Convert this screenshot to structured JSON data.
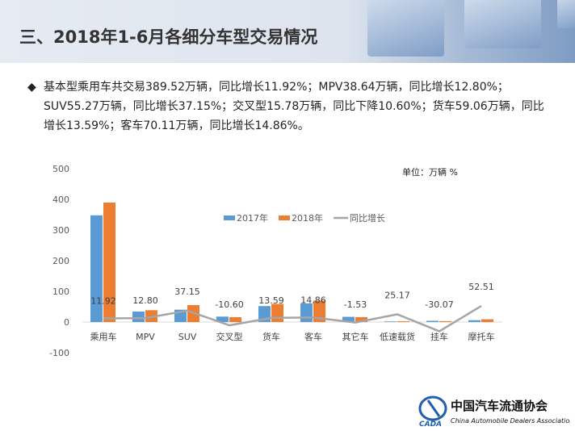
{
  "title": "三、2018年1-6月各细分车型交易情况",
  "bullet": "基本型乘用车共交易389.52万辆，同比增长11.92%；MPV38.64万辆，同比增长12.80%；SUV55.27万辆，同比增长37.15%；交叉型15.78万辆，同比下降10.60%；货车59.06万辆，同比增长13.59%；客车70.11万辆，同比增长14.86%。",
  "logo": {
    "cn": "中国汽车流通协会",
    "en": "China Automobile Dealers Association",
    "abbr": "CADA"
  },
  "chart_data": {
    "type": "bar",
    "unit_label": "单位：万辆  %",
    "categories": [
      "乘用车",
      "MPV",
      "SUV",
      "交叉型",
      "货车",
      "客车",
      "其它车",
      "低速载货",
      "挂车",
      "摩托车"
    ],
    "ylim": [
      -100,
      500
    ],
    "yticks": [
      -100,
      0,
      100,
      200,
      300,
      400,
      500
    ],
    "legend_position": "top-center",
    "grid": false,
    "series": [
      {
        "name": "2017年",
        "type": "bar",
        "color": "#5b9bd5",
        "values": [
          348.0,
          34.3,
          40.3,
          17.7,
          52.0,
          61.0,
          17.0,
          2.0,
          4.0,
          6.0
        ]
      },
      {
        "name": "2018年",
        "type": "bar",
        "color": "#ed7d31",
        "values": [
          389.52,
          38.64,
          55.27,
          15.78,
          59.06,
          70.11,
          16.0,
          2.5,
          3.0,
          9.0
        ]
      },
      {
        "name": "同比增长",
        "type": "line",
        "color": "#a5a5a5",
        "values": [
          11.92,
          12.8,
          37.15,
          -10.6,
          13.59,
          14.86,
          -1.53,
          25.17,
          -30.07,
          52.51
        ],
        "labels": [
          "11.92",
          "12.80",
          "37.15",
          "-10.60",
          "13.59",
          "14.86",
          "-1.53",
          "25.17",
          "-30.07",
          "52.51"
        ]
      }
    ]
  }
}
